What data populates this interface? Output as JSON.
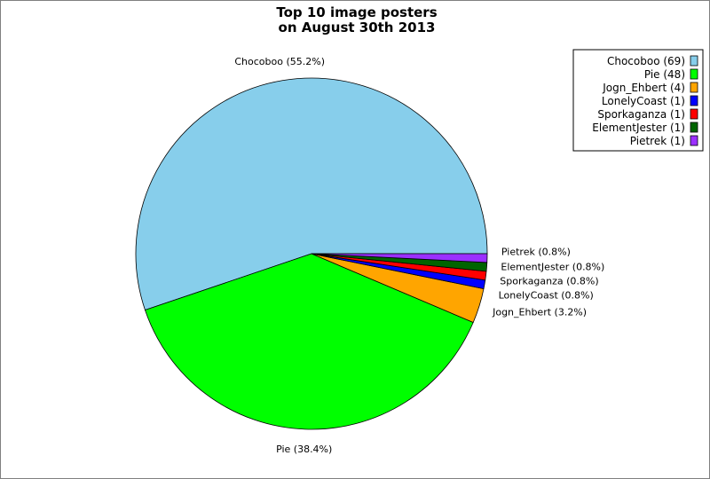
{
  "chart_data": {
    "type": "pie",
    "title": "Top 10 image posters",
    "subtitle": "on August 30th 2013",
    "legend_position": "top-right",
    "slices": [
      {
        "name": "Chocoboo",
        "value": 69,
        "percent_label": "Chocoboo (55.2%)",
        "legend_label": "Chocoboo (69)",
        "color": "#87CEEB"
      },
      {
        "name": "Pie",
        "value": 48,
        "percent_label": "Pie (38.4%)",
        "legend_label": "Pie (48)",
        "color": "#00FF00"
      },
      {
        "name": "Jogn_Ehbert",
        "value": 4,
        "percent_label": "Jogn_Ehbert (3.2%)",
        "legend_label": "Jogn_Ehbert (4)",
        "color": "#FFA500"
      },
      {
        "name": "LonelyCoast",
        "value": 1,
        "percent_label": "LonelyCoast (0.8%)",
        "legend_label": "LonelyCoast (1)",
        "color": "#0000FF"
      },
      {
        "name": "Sporkaganza",
        "value": 1,
        "percent_label": "Sporkaganza (0.8%)",
        "legend_label": "Sporkaganza (1)",
        "color": "#FF0000"
      },
      {
        "name": "ElementJester",
        "value": 1,
        "percent_label": "ElementJester (0.8%)",
        "legend_label": "ElementJester (1)",
        "color": "#006400"
      },
      {
        "name": "Pietrek",
        "value": 1,
        "percent_label": "Pietrek (0.8%)",
        "legend_label": "Pietrek (1)",
        "color": "#9B30FF"
      }
    ]
  }
}
